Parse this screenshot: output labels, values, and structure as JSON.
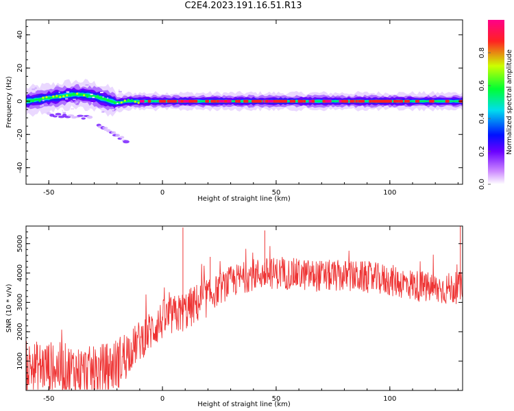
{
  "title": "C2E4.2023.191.16.51.R13",
  "chart_data": [
    {
      "type": "heatmap",
      "xlabel": "Height of straight line (km)",
      "ylabel": "Frequency (Hz)",
      "xlim": [
        -60,
        132
      ],
      "ylim": [
        -50,
        49
      ],
      "xticks": [
        -50,
        0,
        50,
        100
      ],
      "yticks": [
        40,
        20,
        0,
        -20,
        -40
      ],
      "colorbar": {
        "label": "Normalized spectral amplitude",
        "range": [
          0,
          1
        ],
        "ticks": [
          0.0,
          0.2,
          0.4,
          0.6,
          0.8
        ],
        "colormap": [
          "#ffffff",
          "#cc88ff",
          "#6a00ff",
          "#0011ff",
          "#00ddee",
          "#00ff33",
          "#ccff00",
          "#ff2222",
          "#ff0088"
        ]
      },
      "ridge": {
        "x": [
          -60,
          -55,
          -50,
          -45,
          -40,
          -35,
          -30,
          -25,
          -20,
          -15,
          -10,
          -5,
          0,
          10,
          20,
          40,
          60,
          80,
          100,
          132
        ],
        "y": [
          0,
          1,
          2,
          3,
          4,
          4,
          3,
          1,
          -1,
          0,
          0,
          0,
          0,
          0,
          0,
          0,
          0,
          0,
          0,
          0
        ]
      },
      "tails": [
        {
          "x": [
            -28,
            -16
          ],
          "y": [
            -14,
            -24
          ]
        },
        {
          "x": [
            -50,
            -32
          ],
          "y": [
            -8,
            -10
          ]
        }
      ]
    },
    {
      "type": "line",
      "xlabel": "Height of straight line (km)",
      "ylabel": "SNR (10 * v/v)",
      "xlim": [
        -60,
        132
      ],
      "ylim": [
        0,
        5600
      ],
      "xticks": [
        -50,
        0,
        50,
        100
      ],
      "yticks": [
        1000,
        2000,
        3000,
        4000,
        5000
      ],
      "color": "#ee3333",
      "trend": {
        "x": [
          -60,
          -50,
          -40,
          -30,
          -20,
          -10,
          0,
          10,
          20,
          30,
          40,
          50,
          60,
          70,
          80,
          90,
          100,
          110,
          120,
          132
        ],
        "y": [
          800,
          800,
          700,
          600,
          900,
          1700,
          2400,
          2700,
          3200,
          3700,
          3950,
          4000,
          3950,
          3900,
          3900,
          3850,
          3750,
          3600,
          3450,
          3500
        ]
      },
      "spikes": [
        {
          "x": 9,
          "y": 5550
        },
        {
          "x": 45,
          "y": 5450
        },
        {
          "x": 131,
          "y": 5600
        },
        {
          "x": 21,
          "y": 4550
        }
      ]
    }
  ]
}
